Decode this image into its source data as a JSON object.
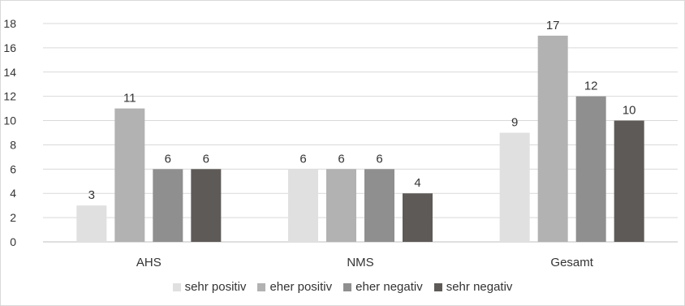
{
  "chart_data": {
    "type": "bar",
    "title": "",
    "xlabel": "",
    "ylabel": "",
    "categories": [
      "AHS",
      "NMS",
      "Gesamt"
    ],
    "series": [
      {
        "name": "sehr positiv",
        "color": "#e0e0e0",
        "values": [
          3,
          6,
          9
        ]
      },
      {
        "name": "eher positiv",
        "color": "#b2b2b2",
        "values": [
          11,
          6,
          17
        ]
      },
      {
        "name": "eher negativ",
        "color": "#8f8f8f",
        "values": [
          6,
          6,
          12
        ]
      },
      {
        "name": "sehr negativ",
        "color": "#5e5a57",
        "values": [
          6,
          4,
          10
        ]
      }
    ],
    "ylim": [
      0,
      18
    ],
    "yticks": [
      "0",
      "2",
      "4",
      "6",
      "8",
      "10",
      "12",
      "14",
      "16",
      "18"
    ],
    "grid": true,
    "legend_position": "bottom"
  }
}
